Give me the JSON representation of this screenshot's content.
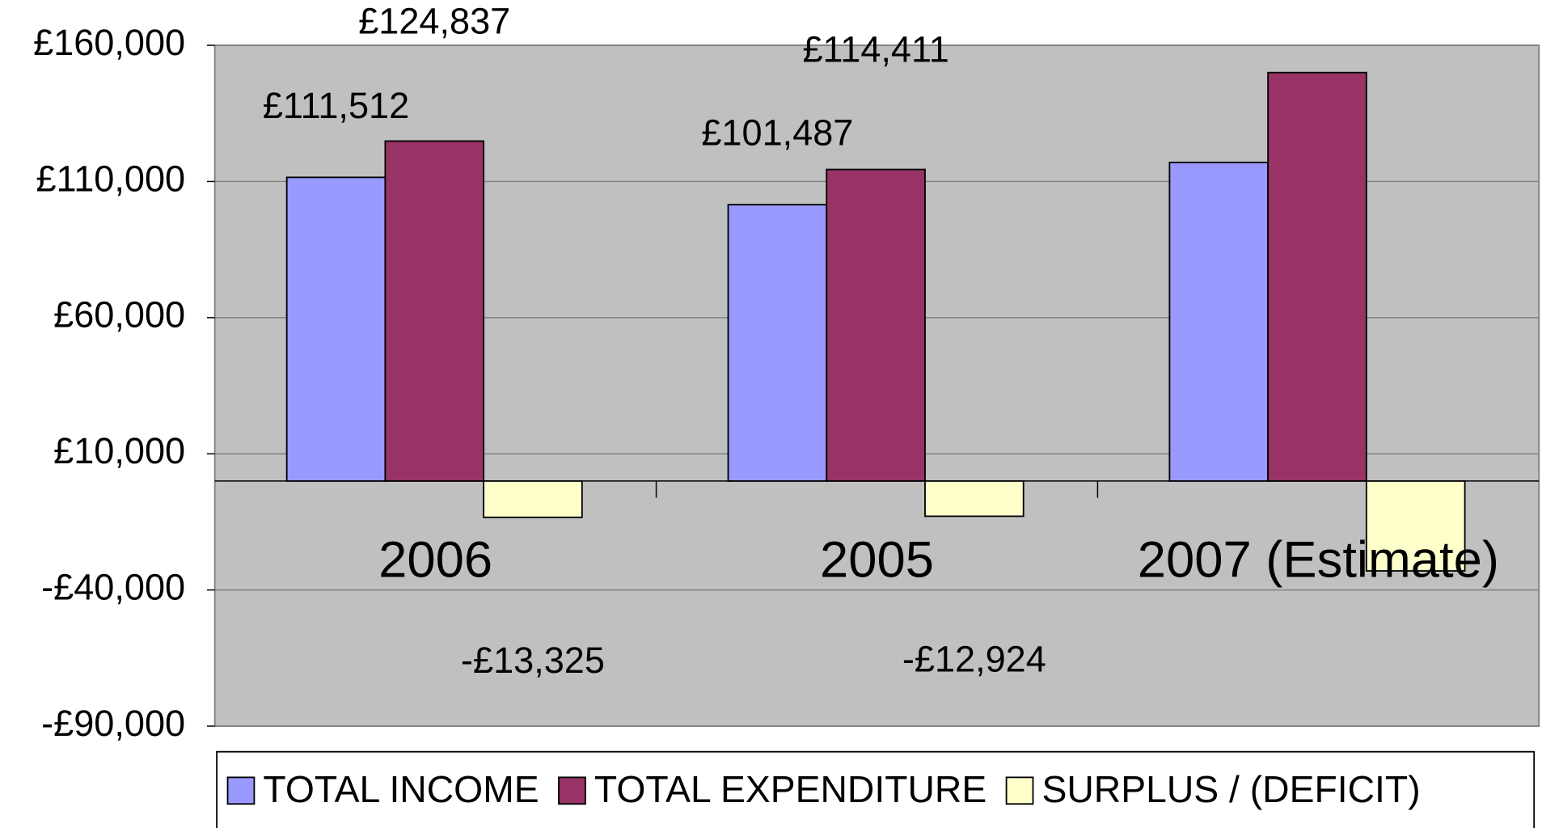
{
  "chart_data": {
    "type": "bar",
    "categories": [
      "2006",
      "2005",
      "2007 (Estimate)"
    ],
    "series": [
      {
        "name": "TOTAL INCOME",
        "color": "#9999ff",
        "values": [
          111512,
          101487,
          117000
        ],
        "value_labels": [
          "£111,512",
          "£101,487",
          null
        ]
      },
      {
        "name": "TOTAL EXPENDITURE",
        "color": "#993366",
        "values": [
          124837,
          114411,
          150000
        ],
        "value_labels": [
          "£124,837",
          "£114,411",
          null
        ]
      },
      {
        "name": "SURPLUS / (DEFICIT)",
        "color": "#ffffcc",
        "values": [
          -13325,
          -12924,
          -33000
        ],
        "value_labels": [
          "-£13,325",
          "-£12,924",
          null
        ]
      }
    ],
    "ylim": [
      -90000,
      160000
    ],
    "yticks": [
      {
        "value": -90000,
        "label": "-£90,000"
      },
      {
        "value": -40000,
        "label": "-£40,000"
      },
      {
        "value": 10000,
        "label": "£10,000"
      },
      {
        "value": 60000,
        "label": "£60,000"
      },
      {
        "value": 110000,
        "label": "£110,000"
      },
      {
        "value": 160000,
        "label": "£160,000"
      }
    ],
    "grid": true,
    "legend": "bottom"
  }
}
